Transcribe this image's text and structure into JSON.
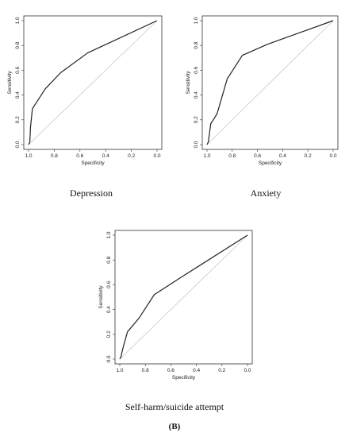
{
  "figure": {
    "panel_label": "(B)"
  },
  "chart_data": [
    {
      "type": "line",
      "caption": "Depression",
      "xlabel": "Specificity",
      "ylabel": "Sensitivity",
      "xlim": [
        1.0,
        0.0
      ],
      "ylim": [
        0.0,
        1.0
      ],
      "xticks": [
        "1.0",
        "0.8",
        "0.6",
        "0.4",
        "0.2",
        "0.0"
      ],
      "yticks": [
        "0.0",
        "0.2",
        "0.4",
        "0.6",
        "0.8",
        "1.0"
      ],
      "x_reversed": true,
      "grid": false,
      "series": [
        {
          "x": [
            1.0,
            0.99,
            0.985,
            0.97,
            0.87,
            0.75,
            0.54,
            0.0
          ],
          "y": [
            0.0,
            0.02,
            0.14,
            0.29,
            0.45,
            0.58,
            0.74,
            1.0
          ],
          "color": "#222222"
        }
      ],
      "reference_line": {
        "x": [
          1.0,
          0.0
        ],
        "y": [
          0.0,
          1.0
        ],
        "color": "#c8c8c8"
      }
    },
    {
      "type": "line",
      "caption": "Anxiety",
      "xlabel": "Specificity",
      "ylabel": "Sensitivity",
      "xlim": [
        1.0,
        0.0
      ],
      "ylim": [
        0.0,
        1.0
      ],
      "xticks": [
        "1.0",
        "0.8",
        "0.6",
        "0.4",
        "0.2",
        "0.0"
      ],
      "yticks": [
        "0.0",
        "0.2",
        "0.4",
        "0.6",
        "0.8",
        "1.0"
      ],
      "x_reversed": true,
      "grid": false,
      "series": [
        {
          "x": [
            1.0,
            0.99,
            0.97,
            0.95,
            0.92,
            0.84,
            0.72,
            0.52,
            0.0
          ],
          "y": [
            0.0,
            0.02,
            0.17,
            0.2,
            0.25,
            0.53,
            0.72,
            0.81,
            1.0
          ],
          "color": "#222222"
        }
      ],
      "reference_line": {
        "x": [
          1.0,
          0.0
        ],
        "y": [
          0.0,
          1.0
        ],
        "color": "#c8c8c8"
      }
    },
    {
      "type": "line",
      "caption": "Self-harm/suicide attempt",
      "xlabel": "Specificity",
      "ylabel": "Sensitivity",
      "xlim": [
        1.0,
        0.0
      ],
      "ylim": [
        0.0,
        1.0
      ],
      "xticks": [
        "1.0",
        "0.8",
        "0.6",
        "0.4",
        "0.2",
        "0.0"
      ],
      "yticks": [
        "0.0",
        "0.2",
        "0.4",
        "0.6",
        "0.8",
        "1.0"
      ],
      "x_reversed": true,
      "grid": false,
      "series": [
        {
          "x": [
            1.0,
            0.99,
            0.98,
            0.94,
            0.85,
            0.73,
            0.52,
            0.0
          ],
          "y": [
            0.0,
            0.02,
            0.07,
            0.22,
            0.33,
            0.52,
            0.66,
            1.0
          ],
          "color": "#222222"
        }
      ],
      "reference_line": {
        "x": [
          1.0,
          0.0
        ],
        "y": [
          0.0,
          1.0
        ],
        "color": "#c8c8c8"
      }
    }
  ]
}
